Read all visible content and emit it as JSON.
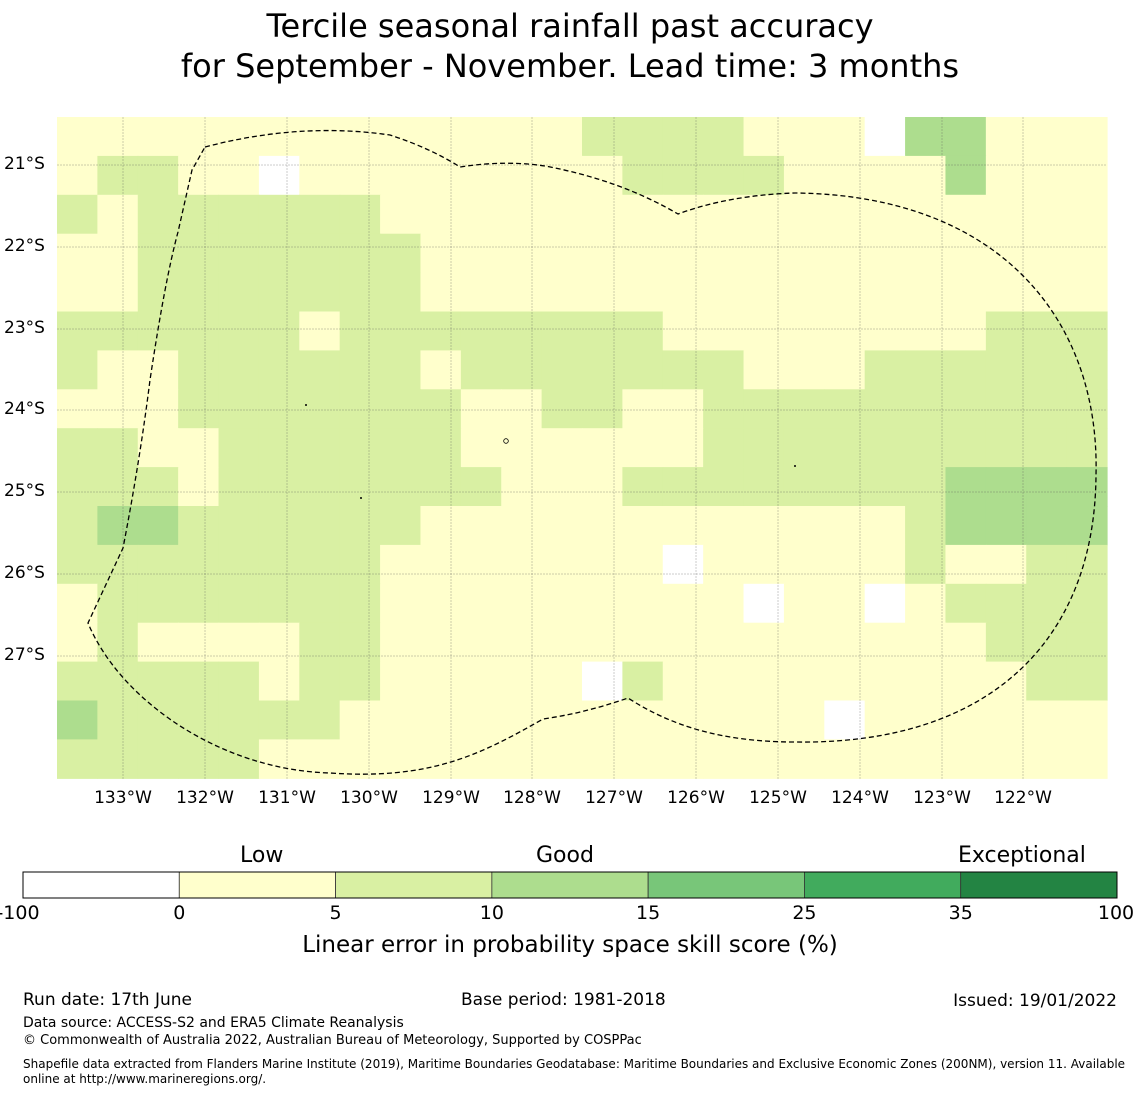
{
  "title_line1": "Tercile seasonal rainfall past accuracy",
  "title_line2": "for September - November. Lead time: 3 months",
  "axes": {
    "lat_labels": [
      "21°S",
      "22°S",
      "23°S",
      "24°S",
      "25°S",
      "26°S",
      "27°S"
    ],
    "lon_labels": [
      "133°W",
      "132°W",
      "131°W",
      "130°W",
      "129°W",
      "128°W",
      "127°W",
      "126°W",
      "125°W",
      "124°W",
      "123°W",
      "122°W"
    ]
  },
  "grid": {
    "rows": [
      "11111111111112222111033111",
      "12211011111111222211113111",
      "21222222111111111111111111",
      "11222222211111111111111111",
      "11222222211111111111111111",
      "22222212222222211111111222",
      "21122222212222222111222222",
      "11122222221122112222222222",
      "22112222221111112222222222",
      "22212222222111222222223333",
      "23322222211111111111123333",
      "22222222111111101111121122",
      "12222222111111111011012222",
      "12111122111111111111111222",
      "22222122111110211111111122",
      "32222221111111111110111111",
      "22222111111111111111111111"
    ],
    "comment": "grid values: 0 = -100 to 0, 1 = 0 to 5, 2 = 5 to 10, 3 = 10 to 15 (skill score % bins)"
  },
  "colorbar": {
    "categories": [
      "Low",
      "Good",
      "Exceptional"
    ],
    "tick_labels": [
      "-100",
      "0",
      "5",
      "10",
      "15",
      "25",
      "35",
      "100"
    ],
    "colors": [
      "#ffffff",
      "#ffffcc",
      "#d9f0a3",
      "#addd8e",
      "#78c679",
      "#41ab5d",
      "#238443"
    ],
    "title": "Linear error in probability space skill score (%)"
  },
  "footer": {
    "run_date": "Run date: 17th June",
    "base_period": "Base period: 1981-2018",
    "issued": "Issued: 19/01/2022",
    "source": "Data source: ACCESS-S2 and ERA5 Climate Reanalysis",
    "copyright": "© Commonwealth of Australia 2022, Australian Bureau of Meteorology, Supported by COSPPac",
    "shapefile": "Shapefile data extracted from Flanders Marine Institute (2019), Maritime Boundaries Geodatabase: Maritime Boundaries and Exclusive Economic Zones (200NM), version 11. Available online at http://www.marineregions.org/."
  }
}
